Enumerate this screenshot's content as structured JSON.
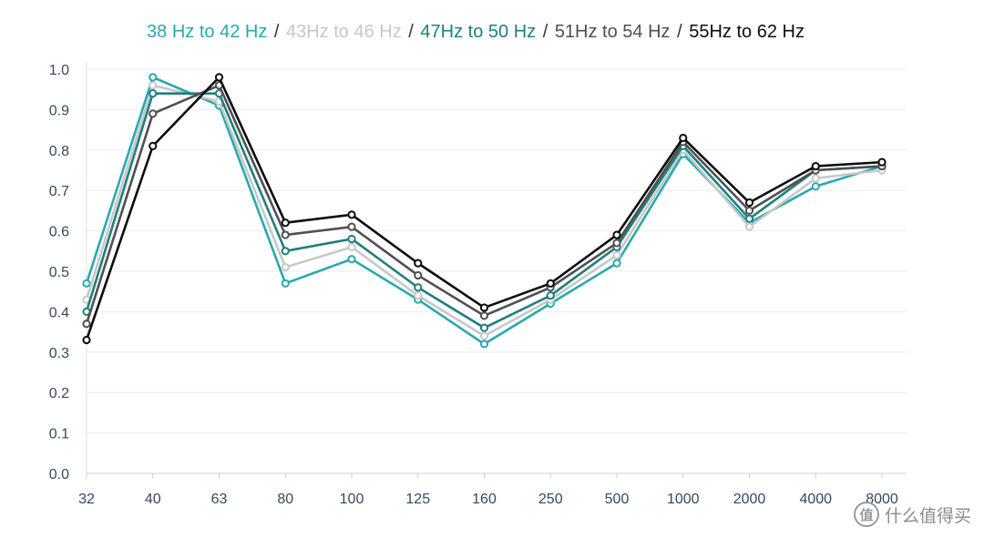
{
  "chart_data": {
    "type": "line",
    "title": "",
    "xlabel": "",
    "ylabel": "",
    "categories": [
      "32",
      "40",
      "63",
      "80",
      "100",
      "125",
      "160",
      "250",
      "500",
      "1000",
      "2000",
      "4000",
      "8000"
    ],
    "ylim": [
      0,
      1.0
    ],
    "yticks": [
      "0.0",
      "0.1",
      "0.2",
      "0.3",
      "0.4",
      "0.5",
      "0.6",
      "0.7",
      "0.8",
      "0.9",
      "1.0"
    ],
    "grid": true,
    "legend_position": "top-center",
    "legend_separator": "/",
    "series": [
      {
        "name": "38 Hz to 42 Hz",
        "color": "#2aa8b0",
        "values": [
          0.47,
          0.98,
          0.91,
          0.47,
          0.53,
          0.43,
          0.32,
          0.42,
          0.52,
          0.79,
          0.62,
          0.71,
          0.76
        ]
      },
      {
        "name": "43Hz to 46 Hz",
        "color": "#c8c8c8",
        "values": [
          0.43,
          0.96,
          0.92,
          0.51,
          0.56,
          0.44,
          0.34,
          0.43,
          0.54,
          0.8,
          0.61,
          0.73,
          0.75
        ]
      },
      {
        "name": "47Hz to 50 Hz",
        "color": "#1f7f7c",
        "values": [
          0.4,
          0.94,
          0.94,
          0.55,
          0.58,
          0.46,
          0.36,
          0.44,
          0.56,
          0.81,
          0.63,
          0.75,
          0.76
        ]
      },
      {
        "name": "51Hz to 54 Hz",
        "color": "#505050",
        "values": [
          0.37,
          0.89,
          0.96,
          0.59,
          0.61,
          0.49,
          0.39,
          0.46,
          0.57,
          0.82,
          0.65,
          0.75,
          0.76
        ]
      },
      {
        "name": "55Hz to 62 Hz",
        "color": "#0d0d0d",
        "values": [
          0.33,
          0.81,
          0.98,
          0.62,
          0.64,
          0.52,
          0.41,
          0.47,
          0.59,
          0.83,
          0.67,
          0.76,
          0.77
        ]
      }
    ]
  },
  "watermark": {
    "logo_glyph": "值",
    "text": "什么值得买"
  }
}
